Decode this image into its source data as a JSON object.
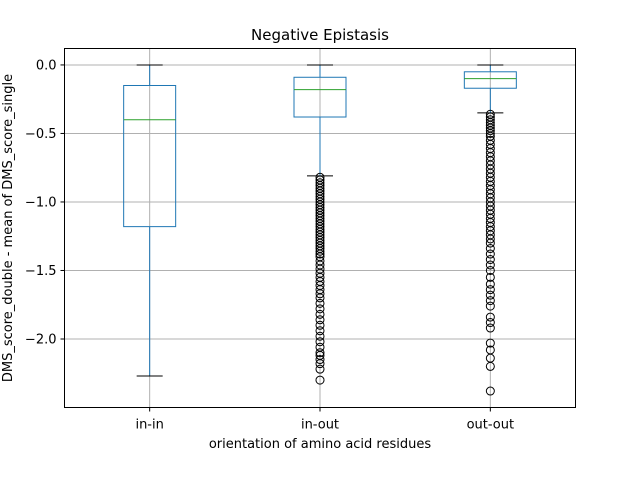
{
  "chart_data": {
    "type": "box",
    "title": "Negative Epistasis",
    "xlabel": "orientation of amino acid residues",
    "ylabel": "DMS_score_double - mean of DMS_score_single",
    "categories": [
      "in-in",
      "in-out",
      "out-out"
    ],
    "ylim": [
      -2.5,
      0.12
    ],
    "yticks": [
      0.0,
      -0.5,
      -1.0,
      -1.5,
      -2.0
    ],
    "ytick_labels": [
      "0.0",
      "−0.5",
      "−1.0",
      "−1.5",
      "−2.0"
    ],
    "grid": true,
    "colors": {
      "box": "#1f77b4",
      "median": "#2ca02c",
      "grid": "#b0b0b0",
      "flier": "#000000"
    },
    "boxes": [
      {
        "category": "in-in",
        "whisker_low": -2.27,
        "q1": -1.18,
        "median": -0.4,
        "q3": -0.15,
        "whisker_high": 0.0,
        "fliers": []
      },
      {
        "category": "in-out",
        "whisker_low": -0.81,
        "q1": -0.38,
        "median": -0.18,
        "q3": -0.09,
        "whisker_high": 0.0,
        "fliers": [
          -0.82,
          -0.84,
          -0.86,
          -0.88,
          -0.9,
          -0.92,
          -0.94,
          -0.96,
          -0.98,
          -1.0,
          -1.02,
          -1.04,
          -1.06,
          -1.08,
          -1.1,
          -1.12,
          -1.14,
          -1.16,
          -1.18,
          -1.2,
          -1.22,
          -1.24,
          -1.26,
          -1.28,
          -1.3,
          -1.32,
          -1.34,
          -1.36,
          -1.38,
          -1.4,
          -1.43,
          -1.46,
          -1.49,
          -1.52,
          -1.55,
          -1.58,
          -1.61,
          -1.64,
          -1.67,
          -1.7,
          -1.74,
          -1.78,
          -1.82,
          -1.86,
          -1.9,
          -1.94,
          -1.98,
          -2.02,
          -2.06,
          -2.1,
          -2.12,
          -2.15,
          -2.18,
          -2.22,
          -2.3
        ]
      },
      {
        "category": "out-out",
        "whisker_low": -0.35,
        "q1": -0.17,
        "median": -0.1,
        "q3": -0.05,
        "whisker_high": 0.0,
        "fliers": [
          -0.36,
          -0.38,
          -0.4,
          -0.42,
          -0.44,
          -0.46,
          -0.48,
          -0.5,
          -0.52,
          -0.55,
          -0.58,
          -0.61,
          -0.64,
          -0.67,
          -0.7,
          -0.73,
          -0.76,
          -0.79,
          -0.82,
          -0.85,
          -0.88,
          -0.91,
          -0.94,
          -0.97,
          -1.0,
          -1.03,
          -1.06,
          -1.09,
          -1.12,
          -1.15,
          -1.18,
          -1.21,
          -1.24,
          -1.27,
          -1.3,
          -1.34,
          -1.38,
          -1.42,
          -1.46,
          -1.5,
          -1.55,
          -1.6,
          -1.64,
          -1.68,
          -1.72,
          -1.76,
          -1.84,
          -1.88,
          -1.92,
          -2.03,
          -2.08,
          -2.14,
          -2.2,
          -2.38
        ]
      }
    ]
  }
}
